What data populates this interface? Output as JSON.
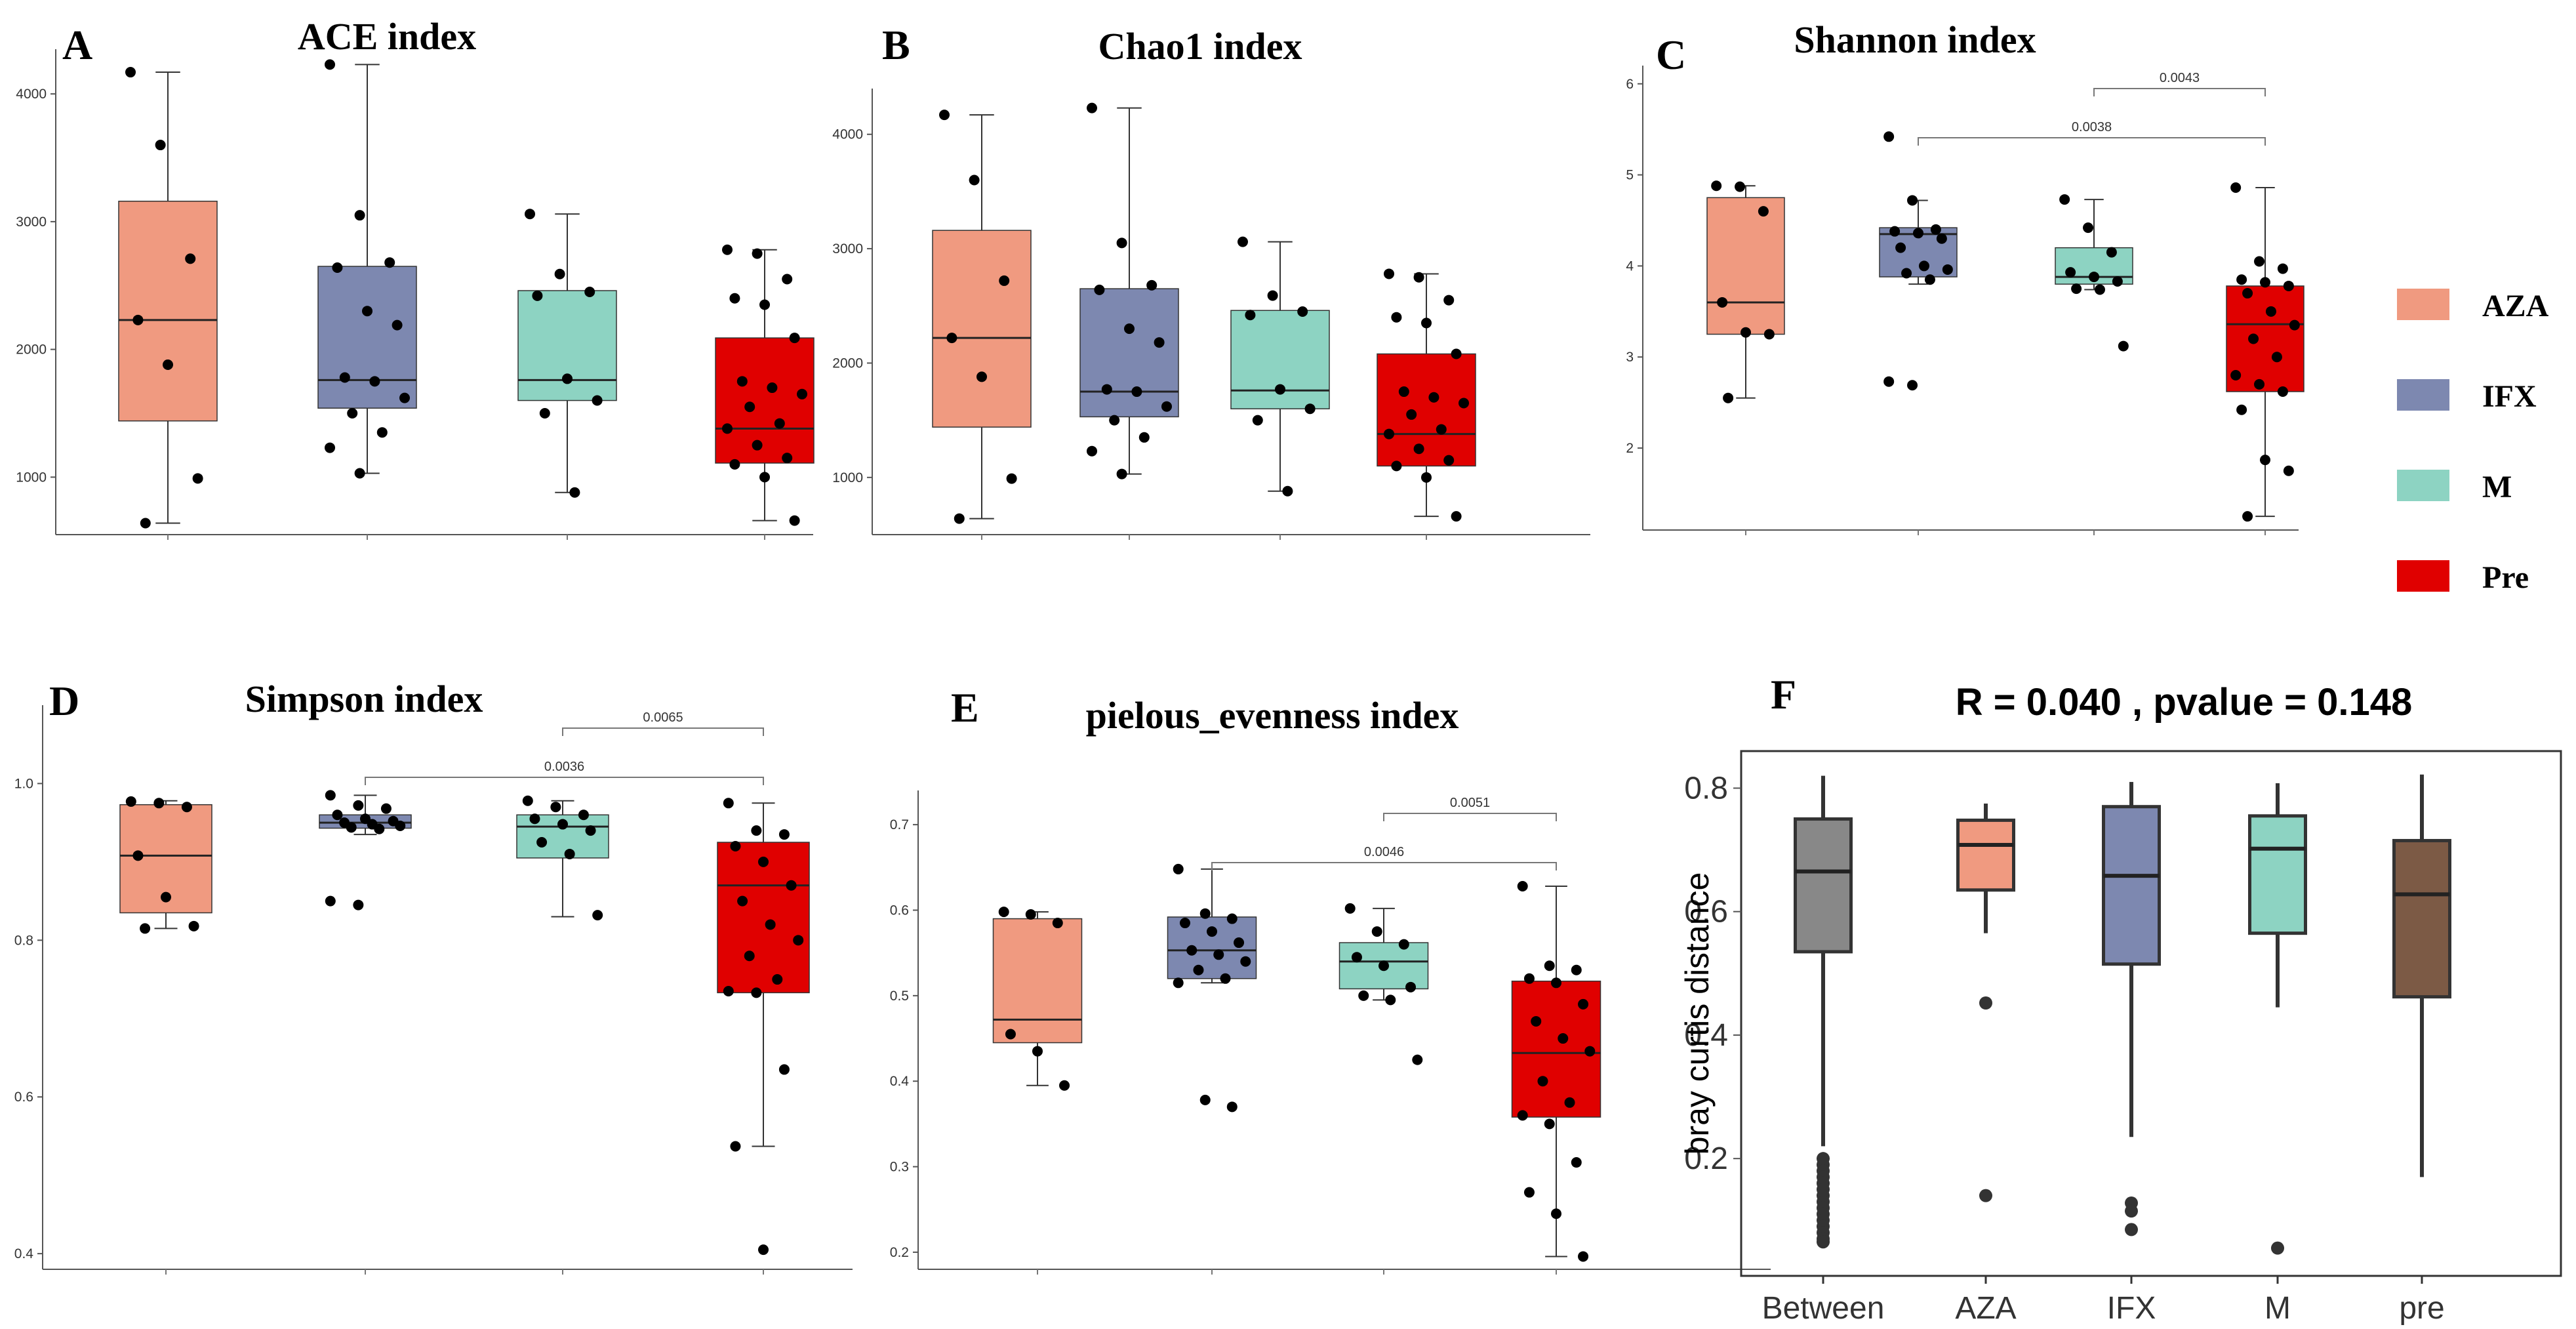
{
  "colors": {
    "AZA": "#f09a80",
    "IFX": "#7d88b0",
    "M": "#8dd3c2",
    "Pre": "#e00000",
    "pre": "#7c5a45"
  },
  "legend": {
    "items": [
      {
        "label": "AZA",
        "color": "#f09a80"
      },
      {
        "label": "IFX",
        "color": "#7d88b0"
      },
      {
        "label": "M",
        "color": "#8dd3c2"
      },
      {
        "label": "Pre",
        "color": "#e00000"
      }
    ]
  },
  "chart_data": [
    {
      "panel": "A",
      "title": "ACE index",
      "type": "box",
      "categories": [
        "AZA",
        "IFX",
        "M",
        "Pre"
      ],
      "ylim": [
        550,
        4350
      ],
      "yticks": [
        "1000",
        "2000",
        "3000",
        "4000"
      ],
      "boxes": [
        {
          "group": "AZA",
          "min": 640,
          "q1": 1440,
          "median": 2230,
          "q3": 3160,
          "max": 4170
        },
        {
          "group": "IFX",
          "min": 1030,
          "q1": 1540,
          "median": 1760,
          "q3": 2650,
          "max": 4230
        },
        {
          "group": "M",
          "min": 880,
          "q1": 1600,
          "median": 1760,
          "q3": 2460,
          "max": 3060
        },
        {
          "group": "Pre",
          "min": 660,
          "q1": 1110,
          "median": 1380,
          "q3": 2090,
          "max": 2780
        }
      ],
      "points": [
        {
          "group": "AZA",
          "values": [
            4170,
            3600,
            2710,
            2230,
            1880,
            990,
            640
          ]
        },
        {
          "group": "IFX",
          "values": [
            4230,
            3050,
            2680,
            2640,
            2300,
            2190,
            1780,
            1750,
            1620,
            1500,
            1350,
            1230,
            1030
          ]
        },
        {
          "group": "M",
          "values": [
            3060,
            2590,
            2450,
            2420,
            1770,
            1600,
            1500,
            880
          ]
        },
        {
          "group": "Pre",
          "values": [
            2780,
            2750,
            2550,
            2400,
            2350,
            2090,
            1750,
            1700,
            1650,
            1550,
            1420,
            1380,
            1250,
            1150,
            1100,
            1000,
            660
          ]
        }
      ],
      "comparisons": []
    },
    {
      "panel": "B",
      "title": "Chao1 index",
      "type": "box",
      "categories": [
        "AZA",
        "IFX",
        "M",
        "Pre"
      ],
      "ylim": [
        500,
        4400
      ],
      "yticks": [
        "1000",
        "2000",
        "3000",
        "4000"
      ],
      "boxes": [
        {
          "group": "AZA",
          "min": 640,
          "q1": 1440,
          "median": 2220,
          "q3": 3160,
          "max": 4170
        },
        {
          "group": "IFX",
          "min": 1030,
          "q1": 1530,
          "median": 1750,
          "q3": 2650,
          "max": 4230
        },
        {
          "group": "M",
          "min": 880,
          "q1": 1600,
          "median": 1760,
          "q3": 2460,
          "max": 3060
        },
        {
          "group": "Pre",
          "min": 660,
          "q1": 1100,
          "median": 1380,
          "q3": 2080,
          "max": 2780
        }
      ],
      "points": [
        {
          "group": "AZA",
          "values": [
            4170,
            3600,
            2720,
            2220,
            1880,
            990,
            640
          ]
        },
        {
          "group": "IFX",
          "values": [
            4230,
            3050,
            2680,
            2640,
            2300,
            2180,
            1770,
            1750,
            1620,
            1500,
            1350,
            1230,
            1030
          ]
        },
        {
          "group": "M",
          "values": [
            3060,
            2590,
            2450,
            2420,
            1770,
            1600,
            1500,
            880
          ]
        },
        {
          "group": "Pre",
          "values": [
            2780,
            2750,
            2550,
            2400,
            2350,
            2080,
            1750,
            1700,
            1650,
            1550,
            1420,
            1380,
            1250,
            1150,
            1100,
            1000,
            660
          ]
        }
      ],
      "comparisons": []
    },
    {
      "panel": "C",
      "title": "Shannon index",
      "type": "box",
      "categories": [
        "AZA",
        "IFX",
        "M",
        "Pre"
      ],
      "ylim": [
        1.1,
        6.2
      ],
      "yticks": [
        "2",
        "3",
        "4",
        "5",
        "6"
      ],
      "boxes": [
        {
          "group": "AZA",
          "min": 2.55,
          "q1": 3.25,
          "median": 3.6,
          "q3": 4.75,
          "max": 4.88
        },
        {
          "group": "IFX",
          "min": 3.8,
          "q1": 3.88,
          "median": 4.35,
          "q3": 4.42,
          "max": 4.72
        },
        {
          "group": "M",
          "min": 3.74,
          "q1": 3.8,
          "median": 3.88,
          "q3": 4.2,
          "max": 4.73
        },
        {
          "group": "Pre",
          "min": 1.25,
          "q1": 2.62,
          "median": 3.36,
          "q3": 3.78,
          "max": 4.86
        }
      ],
      "points": [
        {
          "group": "AZA",
          "values": [
            4.88,
            4.87,
            4.6,
            3.6,
            3.27,
            3.25,
            2.55
          ]
        },
        {
          "group": "IFX",
          "values": [
            5.42,
            4.72,
            4.4,
            4.38,
            4.36,
            4.3,
            4.2,
            4.0,
            3.96,
            3.92,
            3.85,
            2.73,
            2.69
          ]
        },
        {
          "group": "M",
          "values": [
            4.73,
            4.42,
            4.15,
            3.93,
            3.88,
            3.83,
            3.75,
            3.74,
            3.12
          ]
        },
        {
          "group": "Pre",
          "values": [
            4.86,
            4.05,
            3.97,
            3.85,
            3.82,
            3.78,
            3.7,
            3.5,
            3.35,
            3.2,
            3.0,
            2.8,
            2.7,
            2.62,
            2.42,
            1.87,
            1.75,
            1.25
          ]
        }
      ],
      "comparisons": [
        {
          "from": "IFX",
          "to": "Pre",
          "label": "0.0038"
        },
        {
          "from": "M",
          "to": "Pre",
          "label": "0.0043"
        }
      ]
    },
    {
      "panel": "D",
      "title": "Simpson index",
      "type": "box",
      "categories": [
        "AZA",
        "IFX",
        "M",
        "Pre"
      ],
      "ylim": [
        0.38,
        1.1
      ],
      "yticks": [
        "0.4",
        "0.6",
        "0.8",
        "1.0"
      ],
      "boxes": [
        {
          "group": "AZA",
          "min": 0.815,
          "q1": 0.835,
          "median": 0.908,
          "q3": 0.973,
          "max": 0.978
        },
        {
          "group": "IFX",
          "min": 0.935,
          "q1": 0.943,
          "median": 0.95,
          "q3": 0.96,
          "max": 0.985
        },
        {
          "group": "M",
          "min": 0.83,
          "q1": 0.905,
          "median": 0.945,
          "q3": 0.96,
          "max": 0.978
        },
        {
          "group": "Pre",
          "min": 0.537,
          "q1": 0.733,
          "median": 0.87,
          "q3": 0.925,
          "max": 0.975
        }
      ],
      "points": [
        {
          "group": "AZA",
          "values": [
            0.977,
            0.975,
            0.97,
            0.908,
            0.855,
            0.818,
            0.815
          ]
        },
        {
          "group": "IFX",
          "values": [
            0.985,
            0.972,
            0.968,
            0.96,
            0.955,
            0.952,
            0.95,
            0.948,
            0.946,
            0.944,
            0.942,
            0.85,
            0.845
          ]
        },
        {
          "group": "M",
          "values": [
            0.978,
            0.97,
            0.96,
            0.955,
            0.948,
            0.94,
            0.925,
            0.91,
            0.832
          ]
        },
        {
          "group": "Pre",
          "values": [
            0.975,
            0.94,
            0.935,
            0.92,
            0.9,
            0.87,
            0.85,
            0.82,
            0.8,
            0.78,
            0.75,
            0.735,
            0.733,
            0.635,
            0.537,
            0.405
          ]
        }
      ],
      "comparisons": [
        {
          "from": "IFX",
          "to": "Pre",
          "label": "0.0036"
        },
        {
          "from": "M",
          "to": "Pre",
          "label": "0.0065"
        }
      ]
    },
    {
      "panel": "E",
      "title": "pielous_evenness index",
      "type": "box",
      "categories": [
        "AZA",
        "IFX",
        "M",
        "Pre"
      ],
      "ylim": [
        0.18,
        0.74
      ],
      "yticks": [
        "0.2",
        "0.3",
        "0.4",
        "0.5",
        "0.6",
        "0.7"
      ],
      "boxes": [
        {
          "group": "AZA",
          "min": 0.395,
          "q1": 0.445,
          "median": 0.472,
          "q3": 0.59,
          "max": 0.598
        },
        {
          "group": "IFX",
          "min": 0.515,
          "q1": 0.52,
          "median": 0.553,
          "q3": 0.592,
          "max": 0.648
        },
        {
          "group": "M",
          "min": 0.495,
          "q1": 0.508,
          "median": 0.54,
          "q3": 0.562,
          "max": 0.602
        },
        {
          "group": "Pre",
          "min": 0.195,
          "q1": 0.358,
          "median": 0.433,
          "q3": 0.517,
          "max": 0.628
        }
      ],
      "points": [
        {
          "group": "AZA",
          "values": [
            0.598,
            0.595,
            0.585,
            0.455,
            0.435,
            0.395
          ]
        },
        {
          "group": "IFX",
          "values": [
            0.648,
            0.596,
            0.59,
            0.585,
            0.575,
            0.562,
            0.553,
            0.548,
            0.54,
            0.53,
            0.52,
            0.515,
            0.378,
            0.37
          ]
        },
        {
          "group": "M",
          "values": [
            0.602,
            0.575,
            0.56,
            0.545,
            0.535,
            0.51,
            0.5,
            0.495,
            0.425
          ]
        },
        {
          "group": "Pre",
          "values": [
            0.628,
            0.535,
            0.53,
            0.52,
            0.515,
            0.49,
            0.47,
            0.45,
            0.435,
            0.4,
            0.375,
            0.36,
            0.35,
            0.305,
            0.27,
            0.245,
            0.195
          ]
        }
      ],
      "comparisons": [
        {
          "from": "IFX",
          "to": "Pre",
          "label": "0.0046"
        },
        {
          "from": "M",
          "to": "Pre",
          "label": "0.0051"
        }
      ]
    },
    {
      "panel": "F",
      "title": "R = 0.040 , pvalue = 0.148",
      "type": "box",
      "categories": [
        "Between",
        "AZA",
        "IFX",
        "M",
        "pre"
      ],
      "ylabel": "bray curtis distance",
      "ylim": [
        0.01,
        0.86
      ],
      "yticks": [
        "0.2",
        "0.4",
        "0.6",
        "0.8"
      ],
      "boxes": [
        {
          "group": "Between",
          "min": 0.22,
          "q1": 0.535,
          "median": 0.665,
          "q3": 0.75,
          "max": 0.82
        },
        {
          "group": "AZA",
          "min": 0.565,
          "q1": 0.635,
          "median": 0.708,
          "q3": 0.748,
          "max": 0.775
        },
        {
          "group": "IFX",
          "min": 0.235,
          "q1": 0.515,
          "median": 0.658,
          "q3": 0.77,
          "max": 0.81
        },
        {
          "group": "M",
          "min": 0.445,
          "q1": 0.565,
          "median": 0.702,
          "q3": 0.755,
          "max": 0.808
        },
        {
          "group": "pre",
          "min": 0.17,
          "q1": 0.462,
          "median": 0.628,
          "q3": 0.715,
          "max": 0.822
        }
      ],
      "outliers": [
        {
          "group": "Between",
          "values": [
            0.2,
            0.19,
            0.18,
            0.17,
            0.16,
            0.15,
            0.14,
            0.13,
            0.12,
            0.11,
            0.1,
            0.09,
            0.08,
            0.07,
            0.065
          ]
        },
        {
          "group": "AZA",
          "values": [
            0.452,
            0.14
          ]
        },
        {
          "group": "IFX",
          "values": [
            0.128,
            0.115,
            0.085
          ]
        },
        {
          "group": "M",
          "values": [
            0.055
          ]
        },
        {
          "group": "pre",
          "values": []
        }
      ],
      "comparisons": []
    }
  ]
}
